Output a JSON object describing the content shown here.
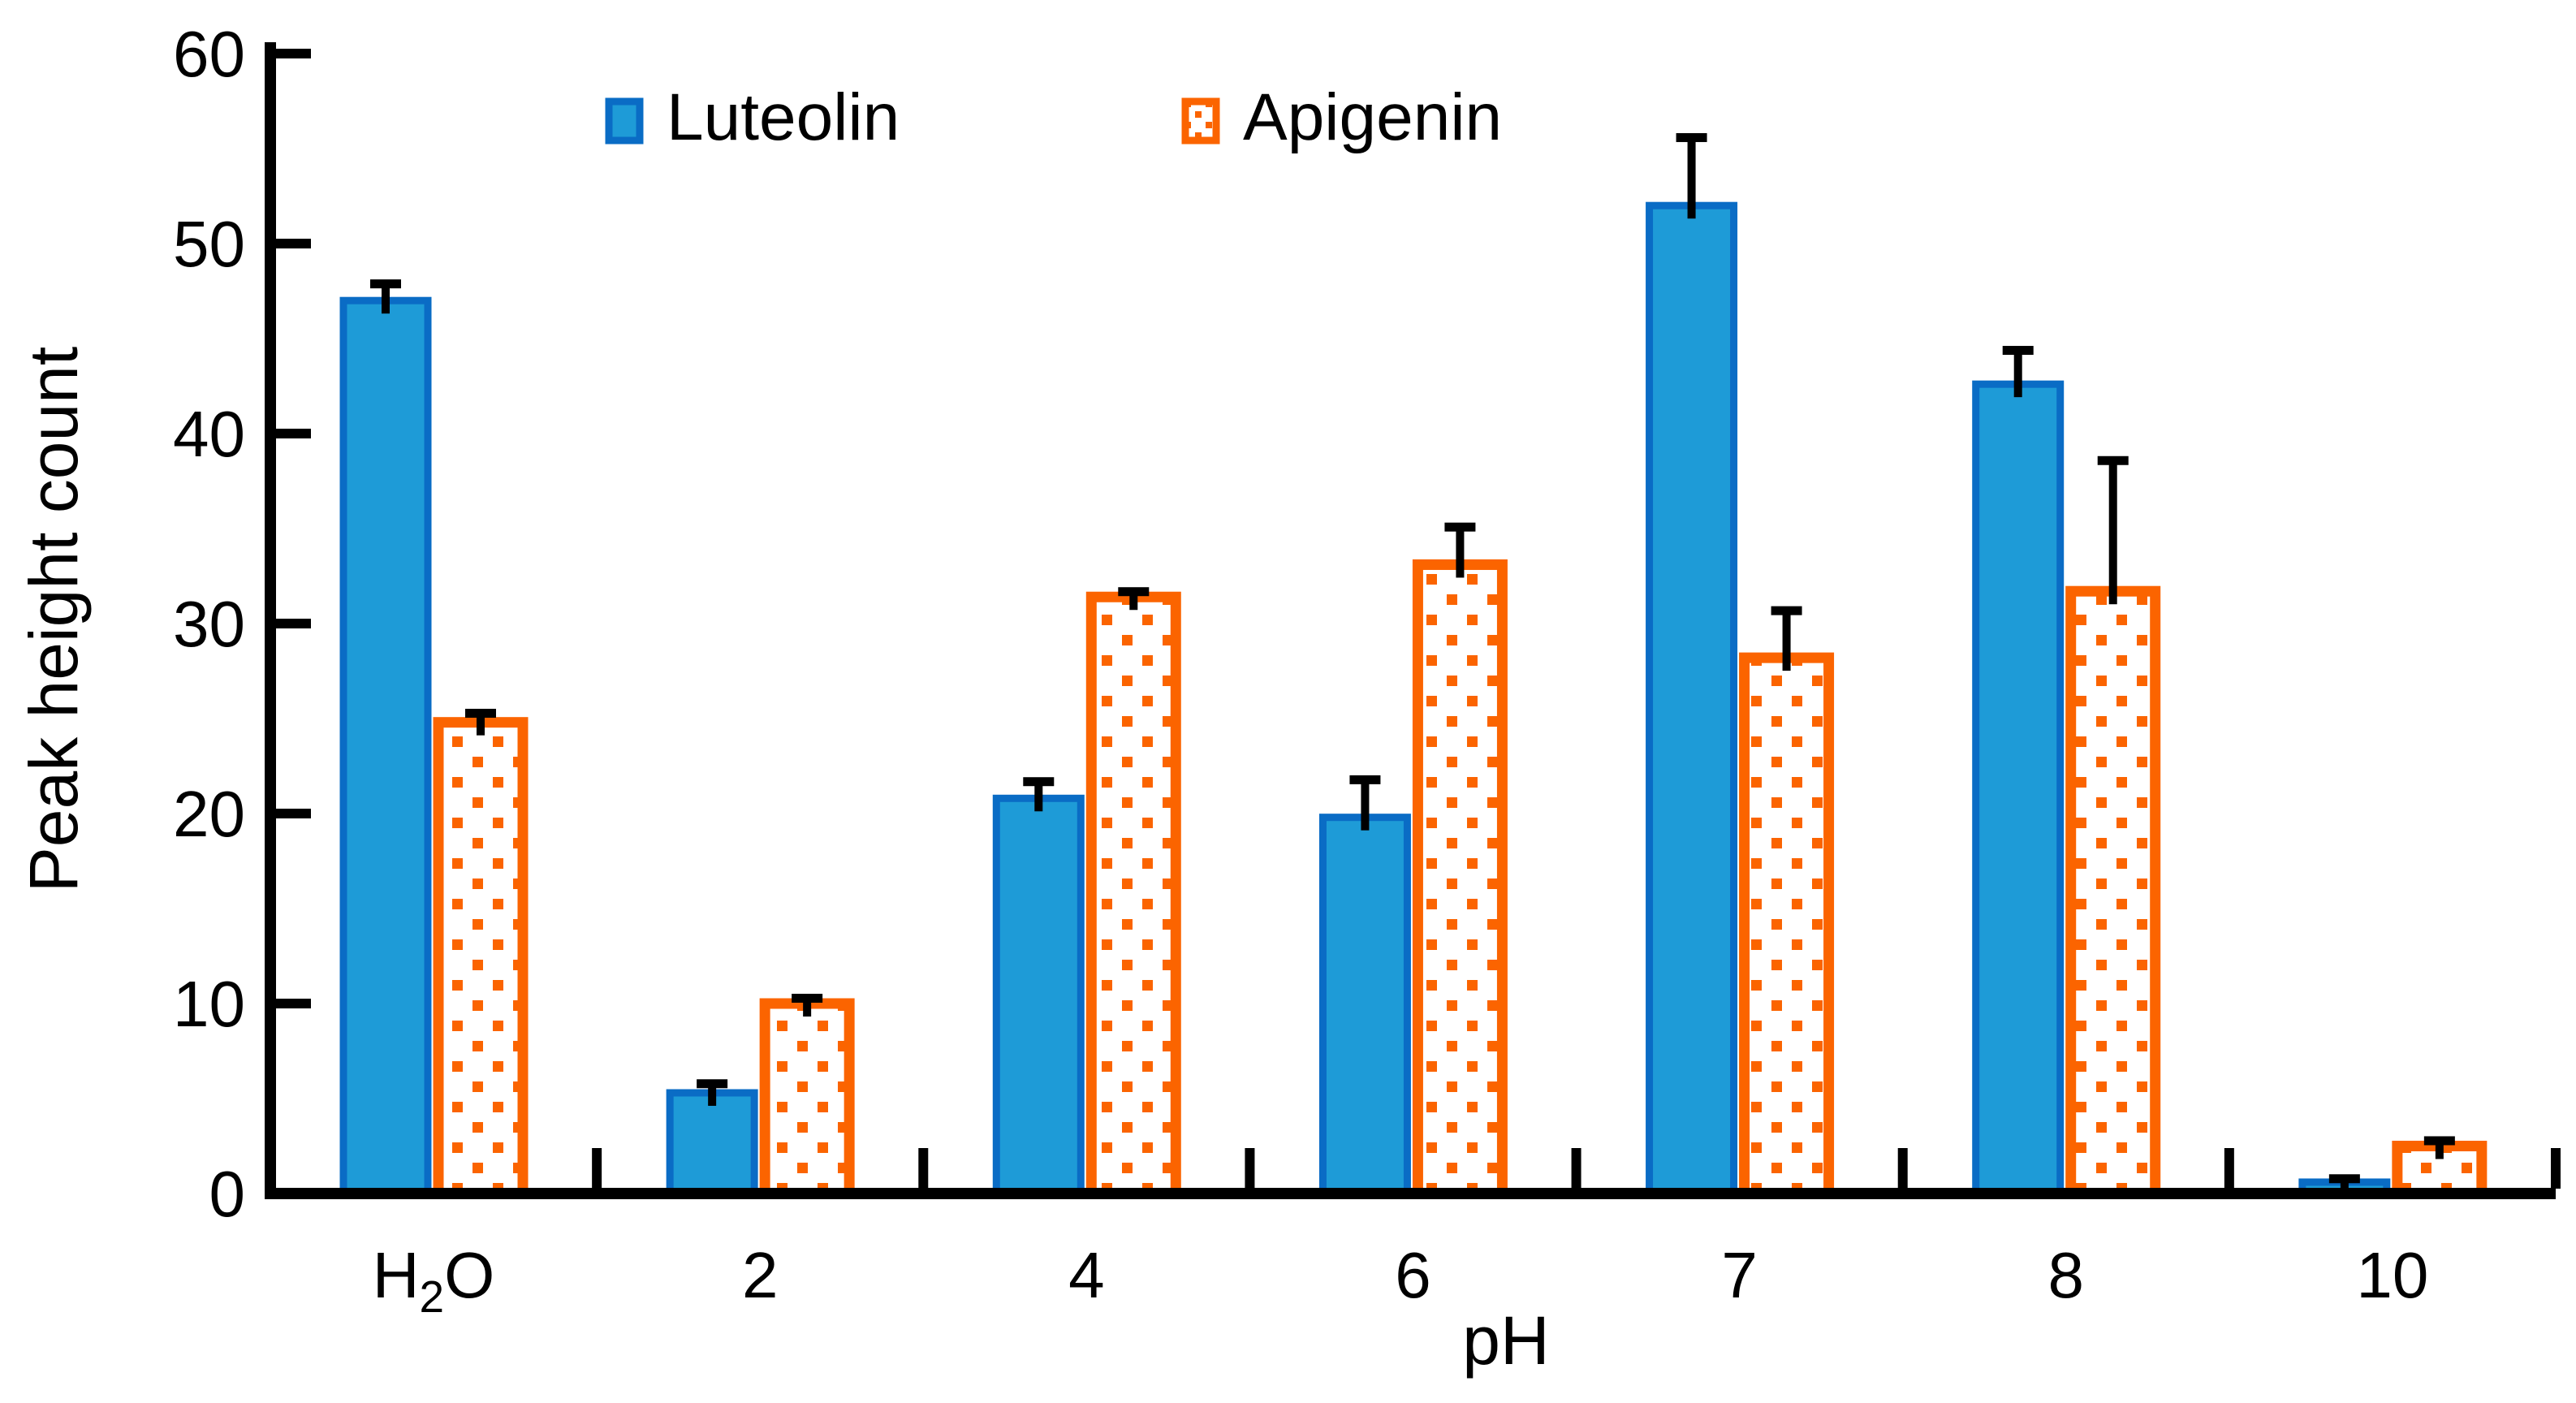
{
  "chart_data": {
    "type": "bar",
    "title": "",
    "xlabel": "pH",
    "ylabel": "Peak height count",
    "ylim": [
      0,
      60
    ],
    "ytick_step": 10,
    "y_tick_labels": [
      "0",
      "10",
      "20",
      "30",
      "40",
      "50",
      "60"
    ],
    "categories": [
      "H₂O",
      "2",
      "4",
      "6",
      "7",
      "8",
      "10"
    ],
    "series": [
      {
        "name": "Luteolin",
        "style": "solid",
        "fill": "#1E9BD7",
        "border": "#0A6CC5",
        "values": [
          47.0,
          5.3,
          20.8,
          19.8,
          52.0,
          42.6,
          0.6
        ],
        "errors_plus": [
          0.9,
          0.5,
          0.9,
          2.0,
          3.6,
          1.8,
          0.2
        ]
      },
      {
        "name": "Apigenin",
        "style": "dotted",
        "fill": "#FFFFFF",
        "dot_color": "#FB6400",
        "border": "#FB6400",
        "values": [
          24.8,
          10.0,
          31.4,
          33.1,
          28.2,
          31.7,
          2.5
        ],
        "errors_plus": [
          0.5,
          0.3,
          0.3,
          2.0,
          2.5,
          6.9,
          0.3
        ]
      }
    ],
    "error_bar_color": "#000000",
    "axis_color": "#000000",
    "grid": false,
    "legend_position": "top-inside",
    "tick_direction": "in"
  }
}
